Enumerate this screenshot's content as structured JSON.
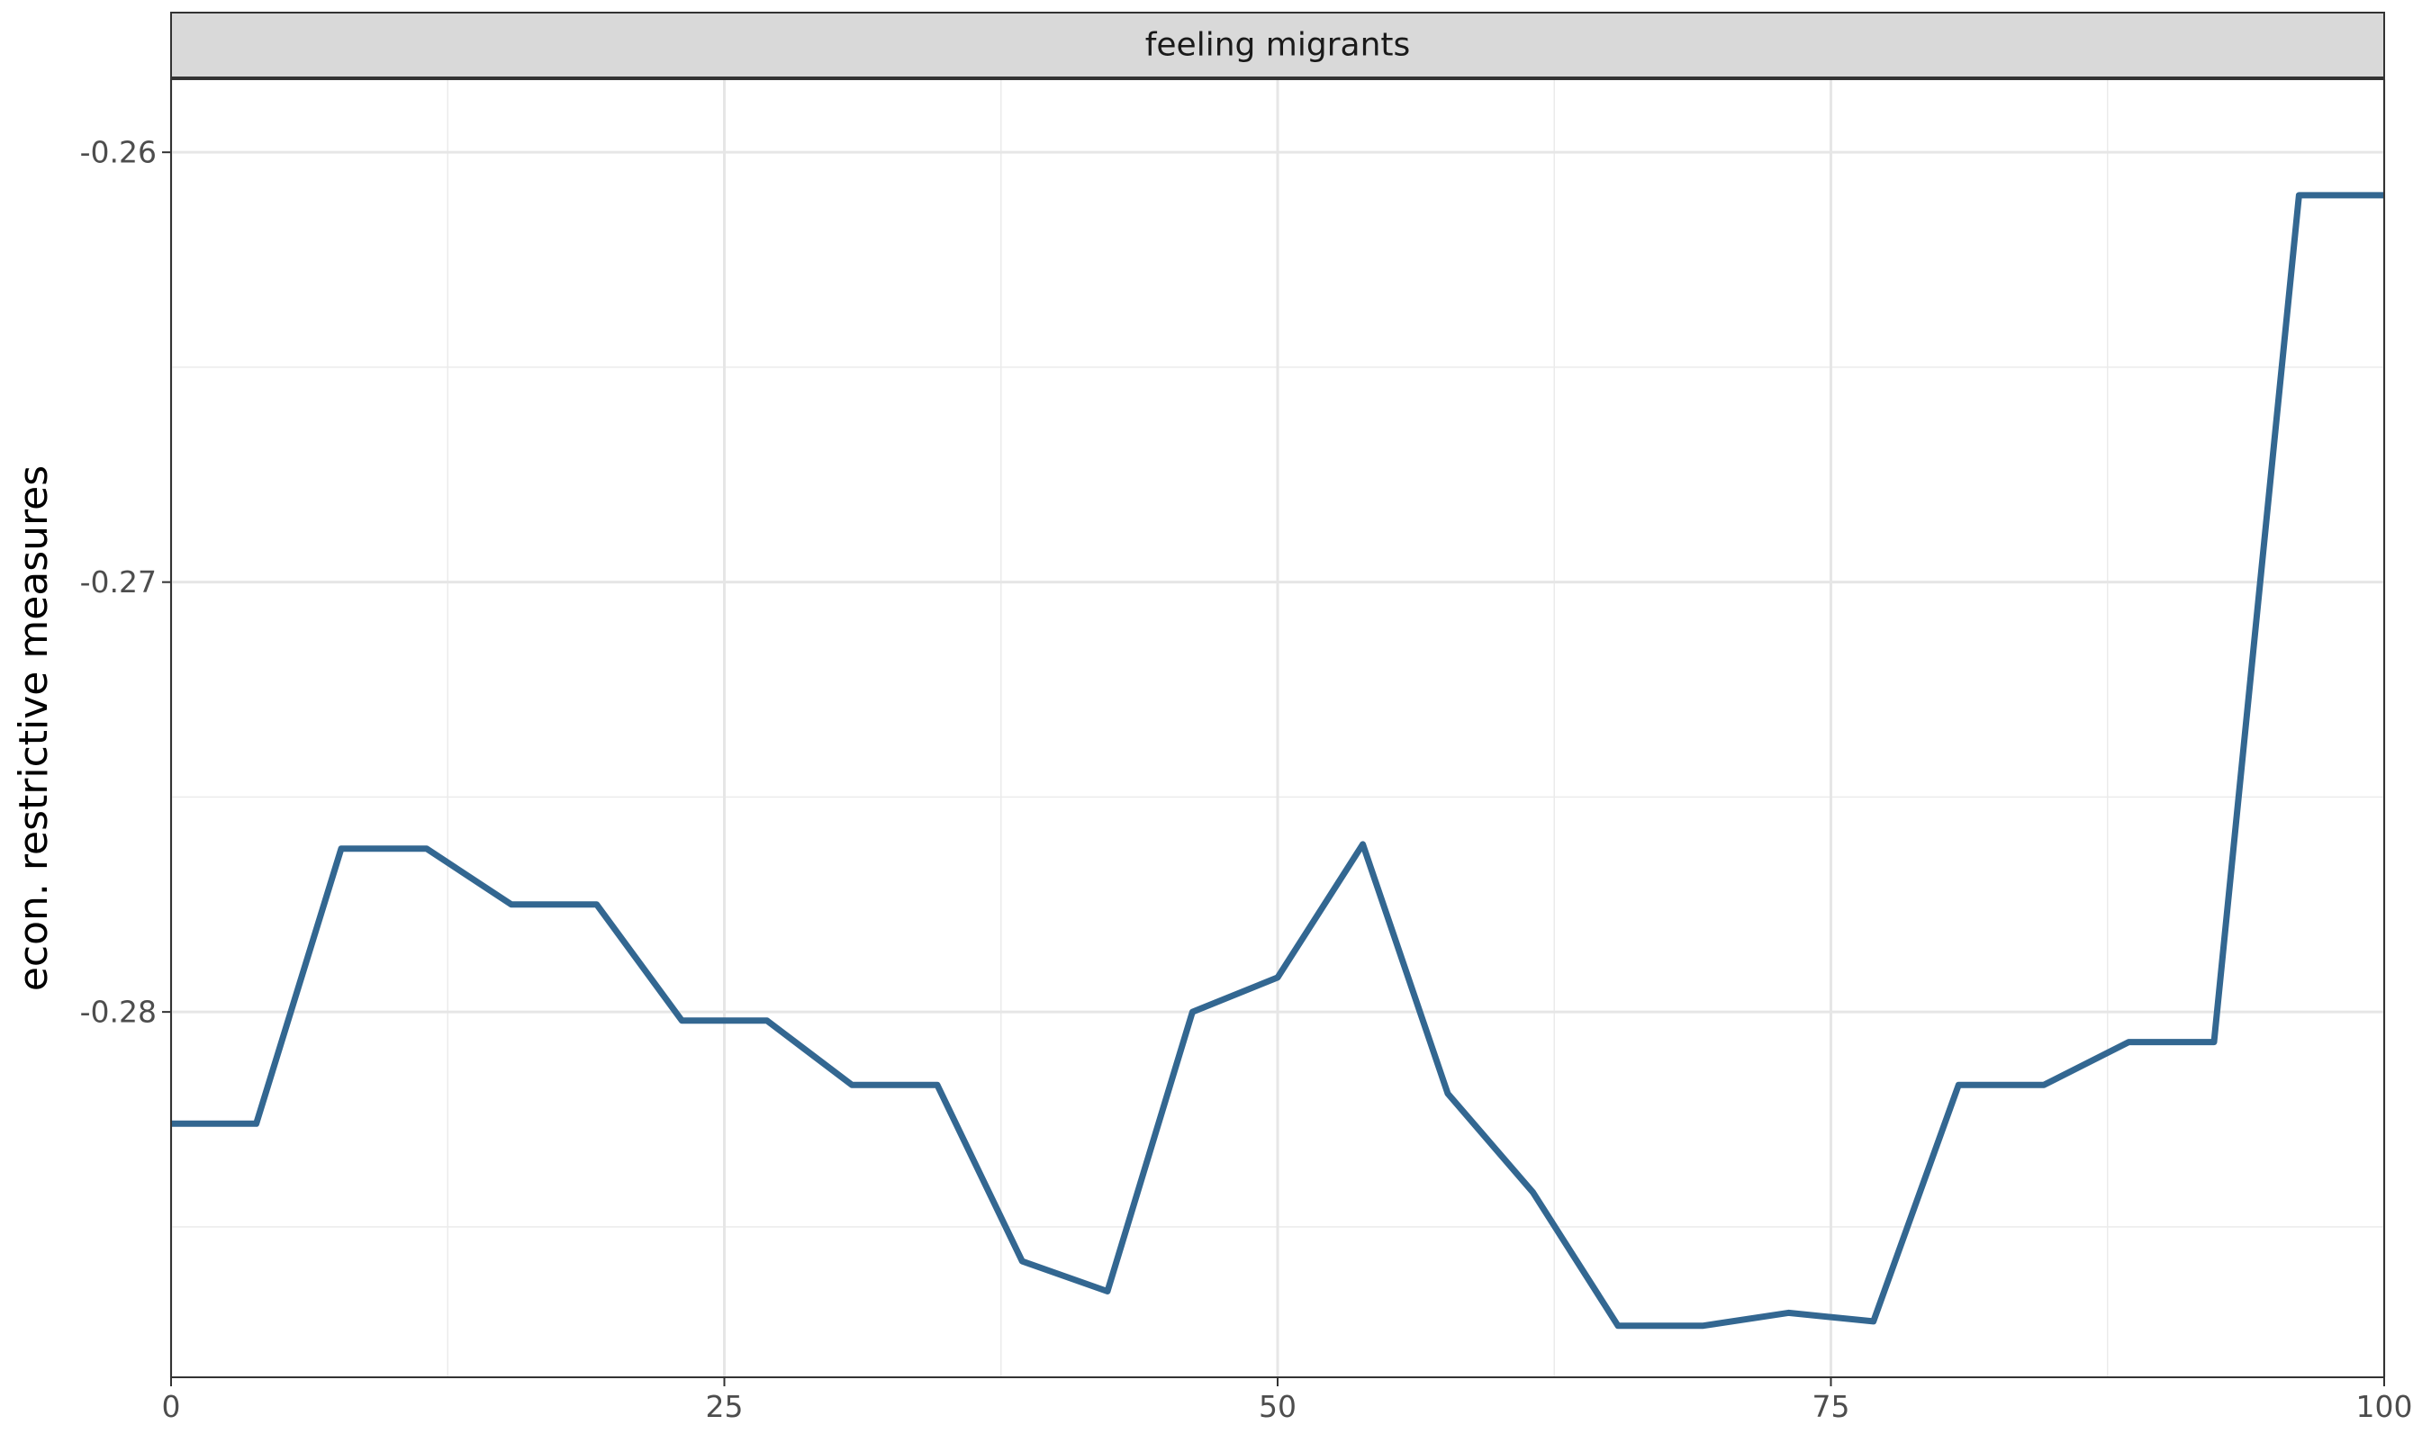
{
  "chart_data": {
    "type": "line",
    "panel_title": "feeling migrants",
    "xlabel": "",
    "ylabel": "econ. restrictive measures",
    "xlim": [
      0,
      100
    ],
    "ylim": [
      -0.2885,
      -0.2583
    ],
    "x_ticks": [
      0,
      25,
      50,
      75,
      100
    ],
    "x_tick_labels": [
      "0",
      "25",
      "50",
      "75",
      "100"
    ],
    "y_ticks": [
      -0.26,
      -0.27,
      -0.28
    ],
    "y_tick_labels": [
      "-0.26",
      "-0.27",
      "-0.28"
    ],
    "grid": true,
    "series": [
      {
        "color": "#336791",
        "x": [
          0,
          3.85,
          7.69,
          11.54,
          15.38,
          19.23,
          23.08,
          26.92,
          30.77,
          34.62,
          38.46,
          42.31,
          46.15,
          50.0,
          53.85,
          57.69,
          61.54,
          65.38,
          69.23,
          73.08,
          76.92,
          80.77,
          84.62,
          88.46,
          92.31,
          96.15,
          100
        ],
        "y": [
          -0.2826,
          -0.2826,
          -0.2762,
          -0.2762,
          -0.2775,
          -0.2775,
          -0.2802,
          -0.2802,
          -0.2817,
          -0.2817,
          -0.2858,
          -0.2865,
          -0.28,
          -0.2792,
          -0.2761,
          -0.2819,
          -0.2842,
          -0.2873,
          -0.2873,
          -0.287,
          -0.2872,
          -0.2817,
          -0.2817,
          -0.2807,
          -0.2807,
          -0.261,
          -0.261
        ]
      }
    ]
  }
}
